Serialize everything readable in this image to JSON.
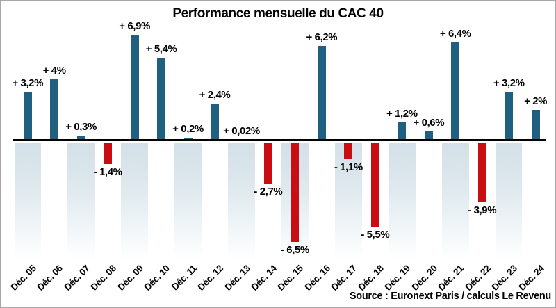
{
  "frame": {
    "border_color": "#a6a6a6",
    "background": "#ffffff"
  },
  "chart_data": {
    "type": "bar",
    "title": "Performance mensuelle du CAC 40",
    "source": "Source : Euronext Paris / calculs Le Revenu",
    "categories": [
      "Déc. 05",
      "Déc. 06",
      "Déc. 07",
      "Déc. 08",
      "Déc. 09",
      "Déc. 10",
      "Déc. 11",
      "Déc. 12",
      "Déc. 13",
      "Déc. 14",
      "Déc. 15",
      "Déc. 16",
      "Déc. 17",
      "Déc. 18",
      "Déc. 19",
      "Déc. 20",
      "Déc. 21",
      "Déc. 22",
      "Déc. 23",
      "Déc. 24"
    ],
    "values": [
      3.2,
      4,
      0.3,
      -1.4,
      6.9,
      5.4,
      0.2,
      2.4,
      0.02,
      -2.7,
      -6.5,
      6.2,
      -1.1,
      -5.5,
      1.2,
      0.6,
      6.4,
      -3.9,
      3.2,
      2
    ],
    "value_labels": [
      "+ 3,2%",
      "+ 4%",
      "+ 0,3%",
      "- 1,4%",
      "+ 6,9%",
      "+ 5,4%",
      "+ 0,2%",
      "+ 2,4%",
      "+ 0,02%",
      "- 2,7%",
      "- 6,5%",
      "+ 6,2%",
      "- 1,1%",
      "- 5,5%",
      "+ 1,2%",
      "+ 0,6%",
      "+ 6,4%",
      "- 3,9%",
      "+ 3,2%",
      "+ 2%"
    ],
    "unit": "%",
    "ylim": [
      -7,
      7.5
    ],
    "grid": "off",
    "legend": "none",
    "x_tick_rotation_deg": -45,
    "background_stripes": "alternate columns below the zero line, fading to white downward",
    "colors": {
      "positive_bar": "#1f5f7f",
      "negative_bar": "#c90d12",
      "background_stripe": "#d3e0e7",
      "axis_line": "#000000",
      "text": "#000000"
    }
  }
}
